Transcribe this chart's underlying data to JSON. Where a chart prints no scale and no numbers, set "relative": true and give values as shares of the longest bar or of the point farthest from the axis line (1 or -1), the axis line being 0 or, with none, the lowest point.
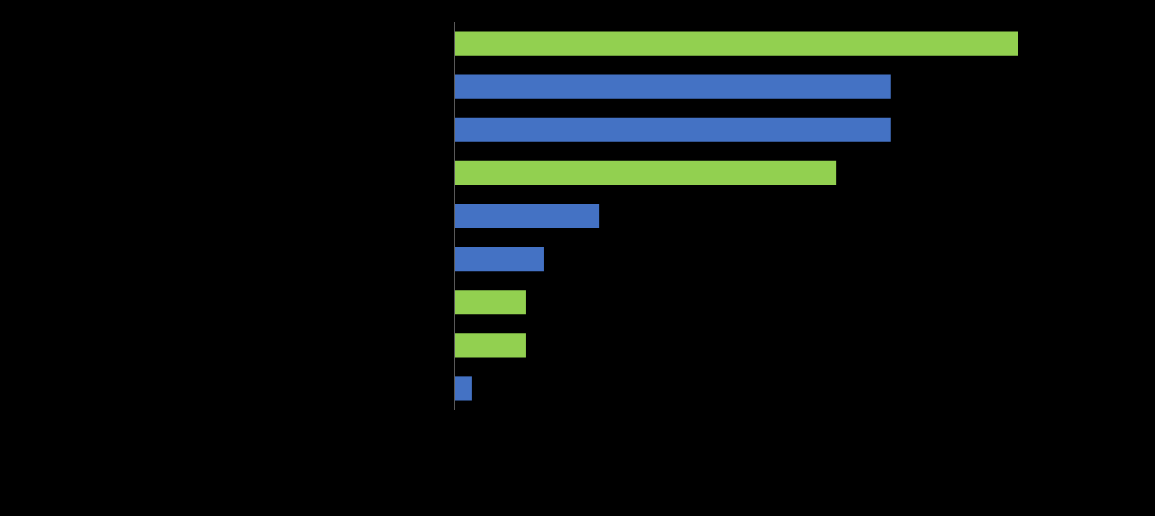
{
  "chart_data": {
    "type": "bar",
    "orientation": "horizontal",
    "relative": true,
    "categories": [
      null,
      null,
      null,
      null,
      null,
      null,
      null,
      null,
      null
    ],
    "values": [
      1,
      0.774,
      0.774,
      0.677,
      0.256,
      0.158,
      0.126,
      0.126,
      0.03
    ],
    "colors": [
      "#92d050",
      "#4472c4",
      "#4472c4",
      "#92d050",
      "#4472c4",
      "#4472c4",
      "#92d050",
      "#92d050",
      "#4472c4"
    ],
    "grid": false
  }
}
